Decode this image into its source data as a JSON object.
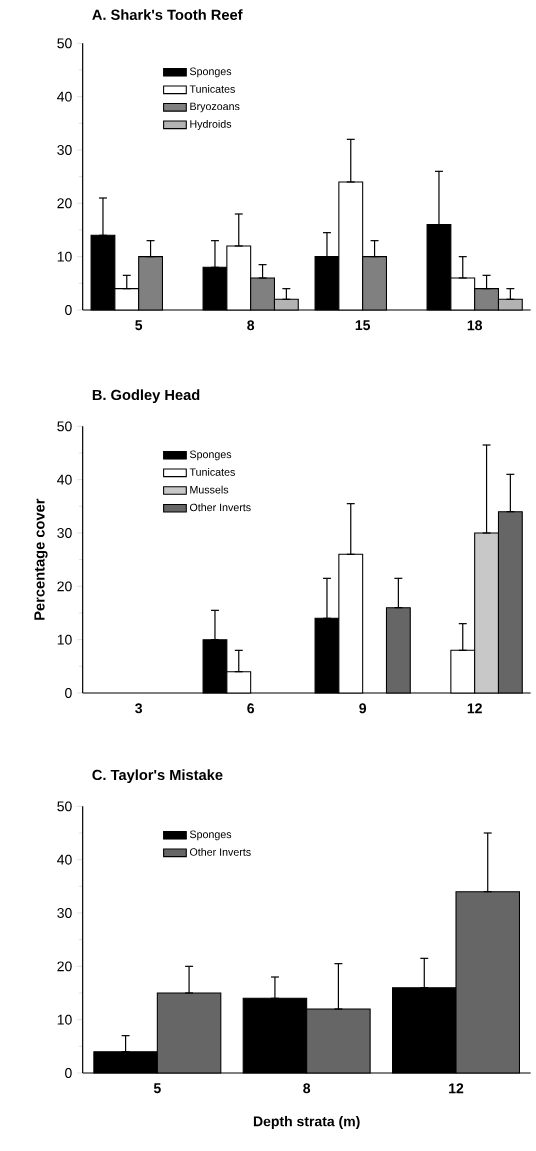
{
  "chart_data": [
    {
      "type": "bar",
      "title": "A. Shark's Tooth Reef",
      "categories": [
        "5",
        "8",
        "15",
        "18"
      ],
      "ylim": [
        0,
        50
      ],
      "yticks": [
        0,
        10,
        20,
        30,
        40,
        50
      ],
      "legend": "top left",
      "series": [
        {
          "name": "Sponges",
          "color": "#000000",
          "values": [
            14,
            8,
            10,
            16
          ],
          "errors": [
            [
              14,
              21
            ],
            [
              8,
              13
            ],
            [
              10,
              14.5
            ],
            [
              16,
              26
            ]
          ]
        },
        {
          "name": "Tunicates",
          "color": "#ffffff",
          "values": [
            4,
            12,
            24,
            6
          ],
          "errors": [
            [
              4,
              6.5
            ],
            [
              12,
              18
            ],
            [
              24,
              32
            ],
            [
              6,
              10
            ]
          ]
        },
        {
          "name": "Bryozoans",
          "color": "#808080",
          "values": [
            10,
            6,
            10,
            4
          ],
          "errors": [
            [
              10,
              13
            ],
            [
              6,
              8.5
            ],
            [
              10,
              13
            ],
            [
              4,
              6.5
            ]
          ]
        },
        {
          "name": "Hydroids",
          "color": "#b3b3b3",
          "values": [
            null,
            2,
            null,
            2
          ],
          "errors": [
            null,
            [
              2,
              4
            ],
            null,
            [
              2,
              4
            ]
          ]
        }
      ]
    },
    {
      "type": "bar",
      "title": "B. Godley Head",
      "ylabel": "Percentage cover",
      "categories": [
        "3",
        "6",
        "9",
        "12"
      ],
      "ylim": [
        0,
        50
      ],
      "yticks": [
        0,
        10,
        20,
        30,
        40,
        50
      ],
      "legend": "top left",
      "series": [
        {
          "name": "Sponges",
          "color": "#000000",
          "values": [
            null,
            10,
            14,
            null
          ],
          "errors": [
            null,
            [
              10,
              15.5
            ],
            [
              14,
              21.5
            ],
            null
          ]
        },
        {
          "name": "Tunicates",
          "color": "#ffffff",
          "values": [
            null,
            4,
            26,
            8
          ],
          "errors": [
            null,
            [
              4,
              8
            ],
            [
              26,
              35.5
            ],
            [
              8,
              13
            ]
          ]
        },
        {
          "name": "Mussels",
          "color": "#c8c8c8",
          "values": [
            null,
            null,
            null,
            30
          ],
          "errors": [
            null,
            null,
            null,
            [
              30,
              46.5
            ]
          ]
        },
        {
          "name": "Other Inverts",
          "color": "#666666",
          "values": [
            null,
            null,
            16,
            34
          ],
          "errors": [
            null,
            null,
            [
              16,
              21.5
            ],
            [
              34,
              41
            ]
          ]
        }
      ]
    },
    {
      "type": "bar",
      "title": "C. Taylor's Mistake",
      "xlabel": "Depth strata (m)",
      "categories": [
        "5",
        "8",
        "12"
      ],
      "ylim": [
        0,
        50
      ],
      "yticks": [
        0,
        10,
        20,
        30,
        40,
        50
      ],
      "legend": "top left",
      "series": [
        {
          "name": "Sponges",
          "color": "#000000",
          "values": [
            4,
            14,
            16
          ],
          "errors": [
            [
              4,
              7
            ],
            [
              14,
              18
            ],
            [
              16,
              21.5
            ]
          ]
        },
        {
          "name": "Other Inverts",
          "color": "#666666",
          "values": [
            15,
            12,
            34
          ],
          "errors": [
            [
              15,
              20
            ],
            [
              12,
              20.5
            ],
            [
              34,
              45
            ]
          ]
        }
      ]
    }
  ]
}
